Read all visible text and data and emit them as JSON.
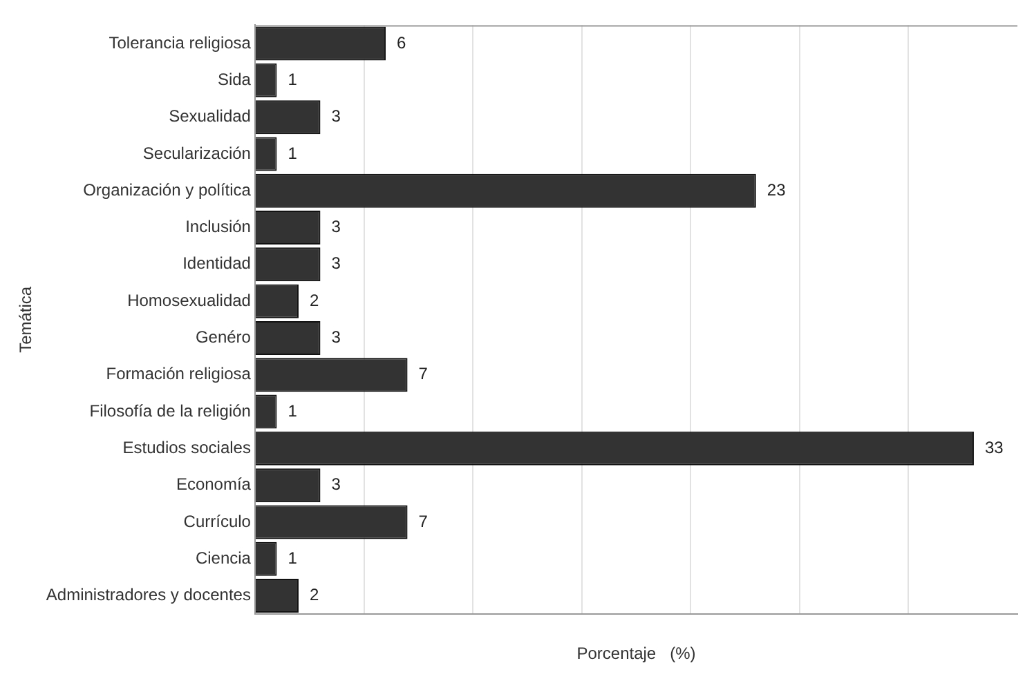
{
  "chart_data": {
    "type": "bar",
    "orientation": "horizontal",
    "xlabel": "Porcentaje   (%)",
    "ylabel": "Temática",
    "categories": [
      "Tolerancia religiosa",
      "Sida",
      "Sexualidad",
      "Secularización",
      "Organización y política",
      "Inclusión",
      "Identidad",
      "Homosexualidad",
      "Genéro",
      "Formación religiosa",
      "Filosofía de la religión",
      "Estudios sociales",
      "Economía",
      "Currículo",
      "Ciencia",
      "Administradores y docentes"
    ],
    "values": [
      6,
      1,
      3,
      1,
      23,
      3,
      3,
      2,
      3,
      7,
      1,
      33,
      3,
      7,
      1,
      2
    ],
    "color": "#333333",
    "data_labels": true,
    "grid": "x",
    "legend": false,
    "tick_labels": "y",
    "xlim": [
      0,
      35
    ],
    "xticks": [
      {
        "value": 0,
        "label": null
      },
      {
        "value": 5,
        "label": null
      },
      {
        "value": 10,
        "label": null
      },
      {
        "value": 15,
        "label": null
      },
      {
        "value": 20,
        "label": null
      },
      {
        "value": 25,
        "label": null
      },
      {
        "value": 30,
        "label": null
      }
    ]
  }
}
